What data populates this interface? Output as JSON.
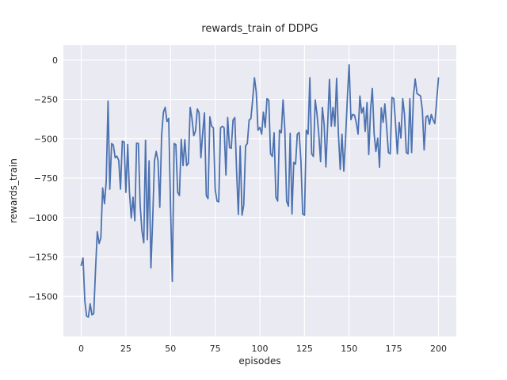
{
  "chart_data": {
    "type": "line",
    "title": "rewards_train of DDPG",
    "xlabel": "episodes",
    "ylabel": "rewards_train",
    "grid": true,
    "legend": null,
    "xlim": [
      -10,
      210
    ],
    "ylim": [
      -1755,
      95
    ],
    "xticks": {
      "values": [
        0,
        25,
        50,
        75,
        100,
        125,
        150,
        175,
        200
      ],
      "labels": [
        "0",
        "25",
        "50",
        "75",
        "100",
        "125",
        "150",
        "175",
        "200"
      ]
    },
    "yticks": {
      "values": [
        0,
        -250,
        -500,
        -750,
        -1000,
        -1250,
        -1500
      ],
      "labels": [
        "0",
        "−250",
        "−500",
        "−750",
        "−1000",
        "−1250",
        "−1500"
      ]
    },
    "style": {
      "line_color": "#4c72b0",
      "line_width": 1.8,
      "axes_background": "#eaeaf2",
      "grid_color": "#ffffff",
      "text_color": "#262626",
      "figure_background": "#ffffff"
    },
    "series": [
      {
        "name": "rewards_train",
        "x_start": 0,
        "x_step": 1,
        "values": [
          -1303,
          -1257,
          -1530,
          -1625,
          -1632,
          -1548,
          -1618,
          -1610,
          -1330,
          -1090,
          -1165,
          -1128,
          -812,
          -912,
          -770,
          -260,
          -820,
          -530,
          -540,
          -620,
          -610,
          -637,
          -820,
          -515,
          -520,
          -840,
          -537,
          -837,
          -1003,
          -870,
          -1020,
          -528,
          -530,
          -920,
          -1085,
          -1160,
          -510,
          -1140,
          -640,
          -1320,
          -1020,
          -640,
          -580,
          -640,
          -935,
          -480,
          -330,
          -300,
          -390,
          -370,
          -935,
          -1405,
          -530,
          -537,
          -840,
          -860,
          -503,
          -670,
          -505,
          -670,
          -655,
          -300,
          -370,
          -480,
          -450,
          -310,
          -335,
          -620,
          -460,
          -335,
          -860,
          -880,
          -360,
          -420,
          -430,
          -820,
          -895,
          -900,
          -430,
          -420,
          -430,
          -730,
          -365,
          -555,
          -560,
          -380,
          -365,
          -710,
          -980,
          -545,
          -985,
          -920,
          -545,
          -530,
          -380,
          -372,
          -250,
          -112,
          -205,
          -445,
          -428,
          -470,
          -330,
          -428,
          -245,
          -255,
          -595,
          -612,
          -462,
          -870,
          -895,
          -445,
          -462,
          -253,
          -445,
          -895,
          -928,
          -465,
          -978,
          -650,
          -660,
          -470,
          -460,
          -645,
          -978,
          -985,
          -445,
          -470,
          -112,
          -595,
          -612,
          -253,
          -340,
          -470,
          -645,
          -300,
          -410,
          -678,
          -400,
          -123,
          -420,
          -300,
          -420,
          -116,
          -470,
          -695,
          -470,
          -705,
          -500,
          -240,
          -30,
          -378,
          -345,
          -350,
          -395,
          -470,
          -228,
          -337,
          -300,
          -453,
          -270,
          -600,
          -312,
          -180,
          -470,
          -580,
          -495,
          -680,
          -303,
          -395,
          -278,
          -428,
          -587,
          -595,
          -237,
          -245,
          -403,
          -595,
          -395,
          -495,
          -245,
          -345,
          -587,
          -595,
          -245,
          -587,
          -228,
          -120,
          -212,
          -220,
          -228,
          -320,
          -570,
          -362,
          -353,
          -408,
          -345,
          -380,
          -403,
          -260,
          -113
        ]
      }
    ]
  }
}
